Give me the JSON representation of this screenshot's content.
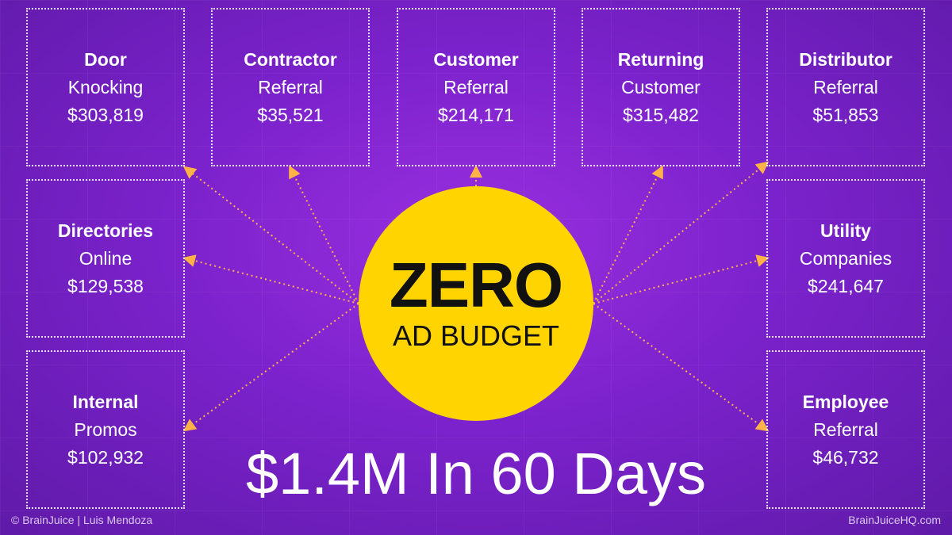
{
  "boxes": [
    {
      "title": "Door",
      "sub": "Knocking",
      "value": "$303,819"
    },
    {
      "title": "Contractor",
      "sub": "Referral",
      "value": "$35,521"
    },
    {
      "title": "Customer",
      "sub": "Referral",
      "value": "$214,171"
    },
    {
      "title": "Returning",
      "sub": "Customer",
      "value": "$315,482"
    },
    {
      "title": "Distributor",
      "sub": "Referral",
      "value": "$51,853"
    },
    {
      "title": "Directories",
      "sub": "Online",
      "value": "$129,538"
    },
    {
      "title": "Utility",
      "sub": "Companies",
      "value": "$241,647"
    },
    {
      "title": "Internal",
      "sub": "Promos",
      "value": "$102,932"
    },
    {
      "title": "Employee",
      "sub": "Referral",
      "value": "$46,732"
    }
  ],
  "center": {
    "big": "ZERO",
    "small": "AD BUDGET"
  },
  "headline": "$1.4M In 60 Days",
  "footer": {
    "left": "© BrainJuice | Luis Mendoza",
    "right": "BrainJuiceHQ.com"
  },
  "colors": {
    "background": "#7b22cc",
    "circle": "#ffd400",
    "arrow": "#ffb347"
  }
}
